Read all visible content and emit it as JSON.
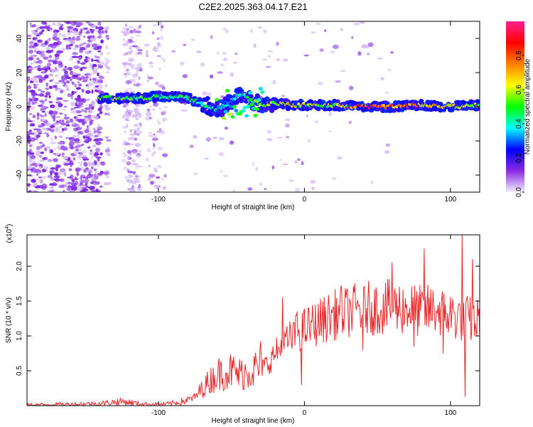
{
  "title": "C2E2.2025.363.04.17.E21",
  "chart_data": [
    {
      "type": "heatmap",
      "name": "spectrogram",
      "xlabel": "Height of straight line (km)",
      "ylabel": "Frequency (Hz)",
      "xlim": [
        -190,
        120
      ],
      "ylim": [
        -50,
        50
      ],
      "xticks": [
        -100,
        0,
        100
      ],
      "xtick_labels": [
        "-100",
        "0",
        "100"
      ],
      "yticks": [
        -40,
        -20,
        0,
        20,
        40
      ],
      "ytick_labels": [
        "-40",
        "-20",
        "0",
        "20",
        "40"
      ],
      "colorbar": {
        "label": "Normalized spectral amplitude",
        "range": [
          0,
          1
        ],
        "ticks": [
          0.0,
          0.2,
          0.4,
          0.6,
          0.8
        ],
        "tick_labels": [
          "0.0",
          "0.2",
          "0.4",
          "0.6",
          "0.8"
        ],
        "colors": [
          "#f0f0ff",
          "#8a2be2",
          "#0000ff",
          "#00ffff",
          "#00ff00",
          "#ffff00",
          "#ff8000",
          "#ff0000",
          "#ff2090"
        ]
      },
      "ridge": {
        "x": [
          -140,
          -125,
          -110,
          -100,
          -90,
          -80,
          -70,
          -60,
          -55,
          -50,
          -45,
          -40,
          -35,
          -30,
          -25,
          -20,
          -10,
          0,
          20,
          40,
          60,
          80,
          100,
          120
        ],
        "freq": [
          5,
          5,
          5,
          6,
          6,
          5,
          2,
          -2,
          0,
          3,
          7,
          6,
          3,
          2,
          1,
          2,
          1,
          1,
          1,
          0,
          0,
          1,
          0,
          1
        ],
        "amplitude": [
          0.5,
          0.6,
          0.55,
          0.55,
          0.55,
          0.5,
          0.45,
          0.45,
          0.45,
          0.4,
          0.4,
          0.45,
          0.5,
          0.55,
          0.55,
          0.7,
          0.7,
          0.65,
          0.65,
          0.9,
          0.9,
          0.75,
          0.7,
          0.65
        ]
      }
    },
    {
      "type": "line",
      "name": "snr",
      "xlabel": "Height of straight line (km)",
      "ylabel": "SNR (10 * v/v)",
      "y_multiplier": "(x10",
      "y_multiplier_exp": "4",
      "y_multiplier_close": ")",
      "color": "#e8262a",
      "xlim": [
        -190,
        120
      ],
      "ylim": [
        0,
        2.45
      ],
      "xticks": [
        -100,
        0,
        100
      ],
      "xtick_labels": [
        "-100",
        "0",
        "100"
      ],
      "yticks": [
        0.5,
        1.0,
        1.5,
        2.0
      ],
      "ytick_labels": [
        "0.5",
        "1.0",
        "1.5",
        "2.0"
      ],
      "series": [
        {
          "name": "SNR",
          "x": [
            -190,
            -160,
            -140,
            -125,
            -110,
            -95,
            -85,
            -75,
            -70,
            -65,
            -60,
            -55,
            -50,
            -45,
            -40,
            -35,
            -30,
            -25,
            -20,
            -15,
            -10,
            -5,
            0,
            10,
            20,
            30,
            40,
            50,
            60,
            70,
            80,
            90,
            100,
            110,
            120
          ],
          "y": [
            0.01,
            0.02,
            0.03,
            0.06,
            0.02,
            0.02,
            0.05,
            0.12,
            0.25,
            0.35,
            0.45,
            0.48,
            0.5,
            0.45,
            0.48,
            0.52,
            0.55,
            0.6,
            0.75,
            0.85,
            0.95,
            1.05,
            1.1,
            1.2,
            1.3,
            1.35,
            1.4,
            1.4,
            1.42,
            1.4,
            1.35,
            1.38,
            1.3,
            1.25,
            1.2
          ],
          "peaks": [
            [
              -30,
              0.92
            ],
            [
              -15,
              1.55
            ],
            [
              -5,
              1.35
            ],
            [
              25,
              1.72
            ],
            [
              60,
              2.05
            ],
            [
              82,
              2.25
            ],
            [
              108,
              2.45
            ],
            [
              115,
              2.1
            ]
          ],
          "dips": [
            [
              -2,
              0.3
            ],
            [
              40,
              0.8
            ],
            [
              75,
              0.85
            ],
            [
              95,
              0.75
            ],
            [
              110,
              0.13
            ]
          ]
        }
      ]
    }
  ]
}
